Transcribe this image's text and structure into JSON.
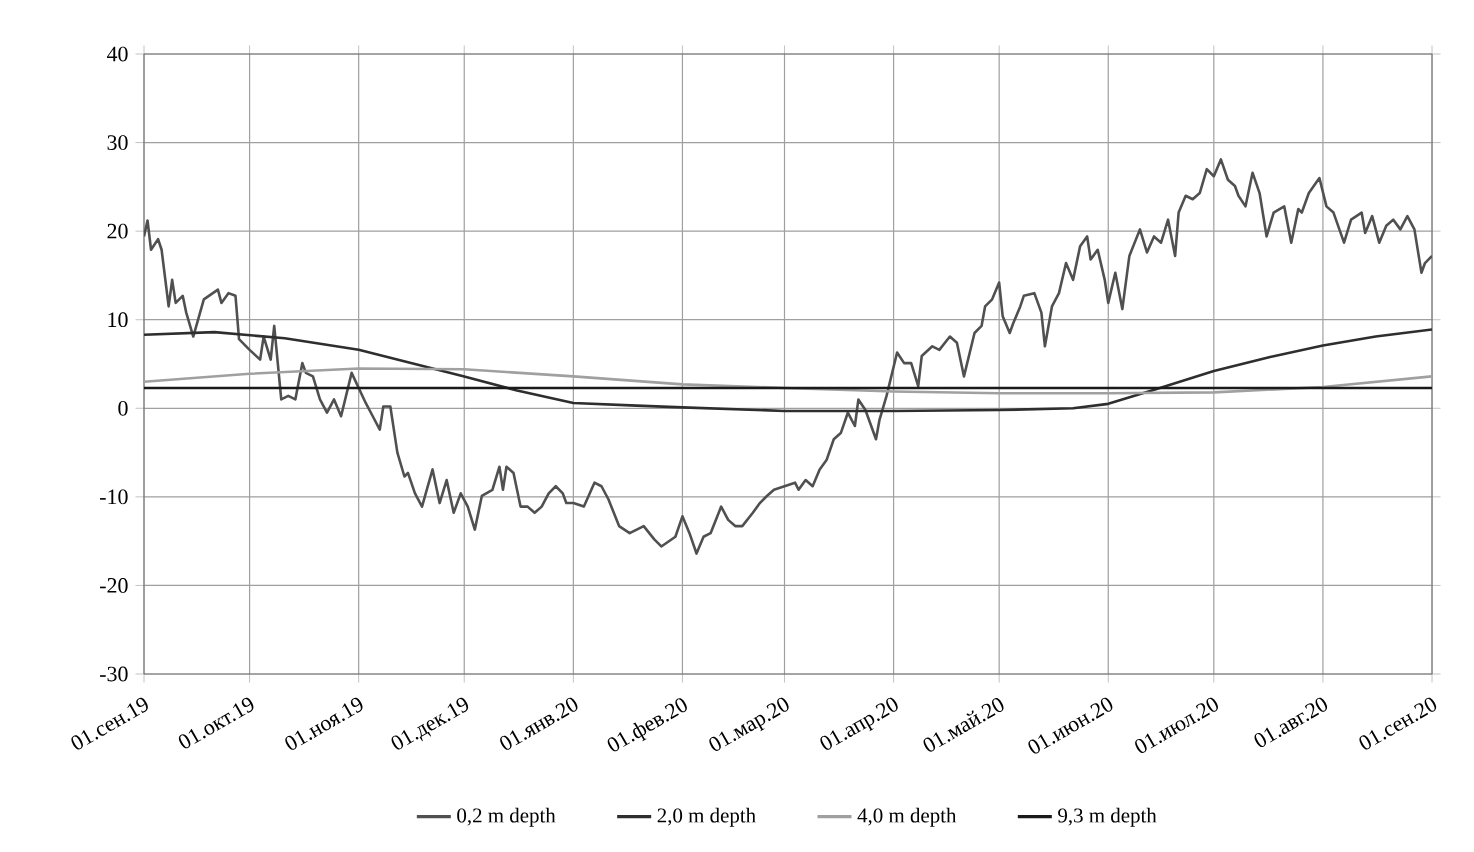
{
  "chart_data": {
    "type": "line",
    "grid": true,
    "legend": "bottom",
    "xlim": [
      "2019-09-01",
      "2020-09-01"
    ],
    "xticks": [
      {
        "value": "2019-09-01",
        "label": "01.сен.19"
      },
      {
        "value": "2019-10-01",
        "label": "01.окт.19"
      },
      {
        "value": "2019-11-01",
        "label": "01.ноя.19"
      },
      {
        "value": "2019-12-01",
        "label": "01.дек.19"
      },
      {
        "value": "2020-01-01",
        "label": "01.янв.20"
      },
      {
        "value": "2020-02-01",
        "label": "01.фев.20"
      },
      {
        "value": "2020-03-01",
        "label": "01.мар.20"
      },
      {
        "value": "2020-04-01",
        "label": "01.апр.20"
      },
      {
        "value": "2020-05-01",
        "label": "01.май.20"
      },
      {
        "value": "2020-06-01",
        "label": "01.июн.20"
      },
      {
        "value": "2020-07-01",
        "label": "01.июл.20"
      },
      {
        "value": "2020-08-01",
        "label": "01.авг.20"
      },
      {
        "value": "2020-09-01",
        "label": "01.сен.20"
      }
    ],
    "ylim": [
      -30,
      40
    ],
    "yticks": [
      -30,
      -20,
      -10,
      0,
      10,
      20,
      30,
      40
    ],
    "series": [
      {
        "name": "0,2 m depth",
        "color": "#505050",
        "x": [
          "2019-09-01",
          "2019-09-02",
          "2019-09-03",
          "2019-09-05",
          "2019-09-06",
          "2019-09-08",
          "2019-09-09",
          "2019-09-10",
          "2019-09-12",
          "2019-09-13",
          "2019-09-15",
          "2019-09-18",
          "2019-09-22",
          "2019-09-23",
          "2019-09-25",
          "2019-09-27",
          "2019-09-28",
          "2019-10-01",
          "2019-10-04",
          "2019-10-05",
          "2019-10-07",
          "2019-10-08",
          "2019-10-10",
          "2019-10-12",
          "2019-10-14",
          "2019-10-16",
          "2019-10-17",
          "2019-10-19",
          "2019-10-21",
          "2019-10-23",
          "2019-10-25",
          "2019-10-27",
          "2019-10-30",
          "2019-11-03",
          "2019-11-05",
          "2019-11-07",
          "2019-11-08",
          "2019-11-10",
          "2019-11-12",
          "2019-11-14",
          "2019-11-15",
          "2019-11-17",
          "2019-11-19",
          "2019-11-22",
          "2019-11-24",
          "2019-11-26",
          "2019-11-28",
          "2019-11-30",
          "2019-12-02",
          "2019-12-04",
          "2019-12-06",
          "2019-12-09",
          "2019-12-11",
          "2019-12-12",
          "2019-12-13",
          "2019-12-15",
          "2019-12-17",
          "2019-12-19",
          "2019-12-21",
          "2019-12-23",
          "2019-12-25",
          "2019-12-27",
          "2019-12-29",
          "2019-12-30",
          "2020-01-01",
          "2020-01-04",
          "2020-01-07",
          "2020-01-09",
          "2020-01-11",
          "2020-01-14",
          "2020-01-17",
          "2020-01-19",
          "2020-01-21",
          "2020-01-24",
          "2020-01-26",
          "2020-01-30",
          "2020-02-01",
          "2020-02-03",
          "2020-02-05",
          "2020-02-07",
          "2020-02-09",
          "2020-02-12",
          "2020-02-14",
          "2020-02-16",
          "2020-02-18",
          "2020-02-21",
          "2020-02-23",
          "2020-02-25",
          "2020-02-27",
          "2020-03-01",
          "2020-03-04",
          "2020-03-05",
          "2020-03-07",
          "2020-03-09",
          "2020-03-11",
          "2020-03-13",
          "2020-03-15",
          "2020-03-17",
          "2020-03-19",
          "2020-03-21",
          "2020-03-22",
          "2020-03-24",
          "2020-03-27",
          "2020-03-28",
          "2020-03-30",
          "2020-04-02",
          "2020-04-04",
          "2020-04-06",
          "2020-04-08",
          "2020-04-09",
          "2020-04-12",
          "2020-04-14",
          "2020-04-17",
          "2020-04-19",
          "2020-04-21",
          "2020-04-24",
          "2020-04-26",
          "2020-04-27",
          "2020-04-29",
          "2020-05-01",
          "2020-05-02",
          "2020-05-04",
          "2020-05-05",
          "2020-05-07",
          "2020-05-08",
          "2020-05-11",
          "2020-05-13",
          "2020-05-14",
          "2020-05-16",
          "2020-05-18",
          "2020-05-20",
          "2020-05-22",
          "2020-05-24",
          "2020-05-26",
          "2020-05-27",
          "2020-05-29",
          "2020-05-31",
          "2020-06-01",
          "2020-06-03",
          "2020-06-05",
          "2020-06-07",
          "2020-06-10",
          "2020-06-12",
          "2020-06-14",
          "2020-06-16",
          "2020-06-18",
          "2020-06-20",
          "2020-06-21",
          "2020-06-23",
          "2020-06-25",
          "2020-06-27",
          "2020-06-29",
          "2020-07-01",
          "2020-07-03",
          "2020-07-05",
          "2020-07-07",
          "2020-07-08",
          "2020-07-10",
          "2020-07-12",
          "2020-07-14",
          "2020-07-16",
          "2020-07-18",
          "2020-07-21",
          "2020-07-23",
          "2020-07-25",
          "2020-07-26",
          "2020-07-28",
          "2020-07-31",
          "2020-08-02",
          "2020-08-04",
          "2020-08-07",
          "2020-08-09",
          "2020-08-12",
          "2020-08-13",
          "2020-08-15",
          "2020-08-17",
          "2020-08-19",
          "2020-08-21",
          "2020-08-23",
          "2020-08-25",
          "2020-08-27",
          "2020-08-29",
          "2020-08-30",
          "2020-09-01"
        ],
        "values": [
          19.4,
          21.2,
          17.9,
          19.1,
          17.9,
          11.5,
          14.5,
          11.9,
          12.7,
          10.8,
          8.1,
          12.3,
          13.4,
          11.9,
          13.0,
          12.7,
          7.8,
          6.6,
          5.5,
          8.1,
          5.5,
          9.3,
          1.0,
          1.4,
          1.0,
          5.1,
          4.0,
          3.6,
          1.0,
          -0.5,
          1.0,
          -0.9,
          4.0,
          0.6,
          -0.9,
          -2.4,
          0.2,
          0.2,
          -5.0,
          -7.7,
          -7.3,
          -9.6,
          -11.1,
          -6.9,
          -10.7,
          -8.1,
          -11.8,
          -9.6,
          -11.1,
          -13.7,
          -9.9,
          -9.2,
          -6.6,
          -9.2,
          -6.6,
          -7.3,
          -11.1,
          -11.1,
          -11.8,
          -11.1,
          -9.6,
          -8.8,
          -9.6,
          -10.7,
          -10.7,
          -11.1,
          -8.4,
          -8.8,
          -10.3,
          -13.3,
          -14.1,
          -13.7,
          -13.3,
          -14.8,
          -15.6,
          -14.5,
          -12.2,
          -14.1,
          -16.4,
          -14.5,
          -14.1,
          -11.1,
          -12.6,
          -13.3,
          -13.3,
          -11.8,
          -10.7,
          -9.9,
          -9.2,
          -8.8,
          -8.4,
          -9.2,
          -8.1,
          -8.8,
          -6.9,
          -5.8,
          -3.5,
          -2.8,
          -0.5,
          -2.0,
          1.0,
          -0.2,
          -3.5,
          -1.3,
          1.4,
          6.3,
          5.1,
          5.1,
          2.5,
          5.9,
          7.0,
          6.6,
          8.1,
          7.4,
          3.6,
          8.5,
          9.3,
          11.5,
          12.3,
          14.2,
          10.4,
          8.5,
          9.6,
          11.5,
          12.7,
          13.0,
          10.8,
          7.0,
          11.5,
          13.0,
          16.4,
          14.5,
          18.3,
          19.4,
          16.8,
          17.9,
          14.5,
          11.9,
          15.3,
          11.2,
          17.2,
          20.2,
          17.6,
          19.4,
          18.7,
          21.3,
          17.2,
          22.1,
          24.0,
          23.6,
          24.3,
          27.0,
          26.2,
          28.1,
          25.8,
          25.1,
          24.0,
          22.8,
          26.6,
          24.3,
          19.4,
          22.1,
          22.8,
          18.7,
          22.5,
          22.1,
          24.3,
          26.0,
          22.8,
          22.1,
          18.7,
          21.3,
          22.1,
          19.8,
          21.7,
          18.7,
          20.6,
          21.3,
          20.2,
          21.7,
          20.2,
          15.3,
          16.4,
          17.2
        ]
      },
      {
        "name": "2,0 m depth",
        "color": "#2e2e2e",
        "x": [
          "2019-09-01",
          "2019-09-21",
          "2019-10-11",
          "2019-11-01",
          "2019-12-01",
          "2019-12-16",
          "2020-01-01",
          "2020-01-19",
          "2020-02-01",
          "2020-03-01",
          "2020-04-01",
          "2020-05-01",
          "2020-05-22",
          "2020-06-01",
          "2020-06-15",
          "2020-07-01",
          "2020-07-17",
          "2020-08-01",
          "2020-08-16",
          "2020-09-01"
        ],
        "values": [
          8.3,
          8.6,
          7.9,
          6.6,
          3.6,
          2.0,
          0.6,
          0.3,
          0.1,
          -0.3,
          -0.3,
          -0.2,
          0.0,
          0.5,
          2.2,
          4.2,
          5.8,
          7.1,
          8.1,
          8.9
        ]
      },
      {
        "name": "4,0 m depth",
        "color": "#a0a0a0",
        "x": [
          "2019-09-01",
          "2019-10-01",
          "2019-11-01",
          "2019-12-01",
          "2020-01-01",
          "2020-02-01",
          "2020-03-01",
          "2020-04-01",
          "2020-05-01",
          "2020-06-01",
          "2020-07-01",
          "2020-08-01",
          "2020-09-01"
        ],
        "values": [
          3.0,
          3.9,
          4.5,
          4.4,
          3.6,
          2.7,
          2.3,
          1.9,
          1.7,
          1.7,
          1.8,
          2.4,
          3.6
        ]
      },
      {
        "name": "9,3 m depth",
        "color": "#1a1a1a",
        "x": [
          "2019-09-01",
          "2020-03-01",
          "2020-09-01"
        ],
        "values": [
          2.3,
          2.3,
          2.3
        ]
      }
    ]
  }
}
